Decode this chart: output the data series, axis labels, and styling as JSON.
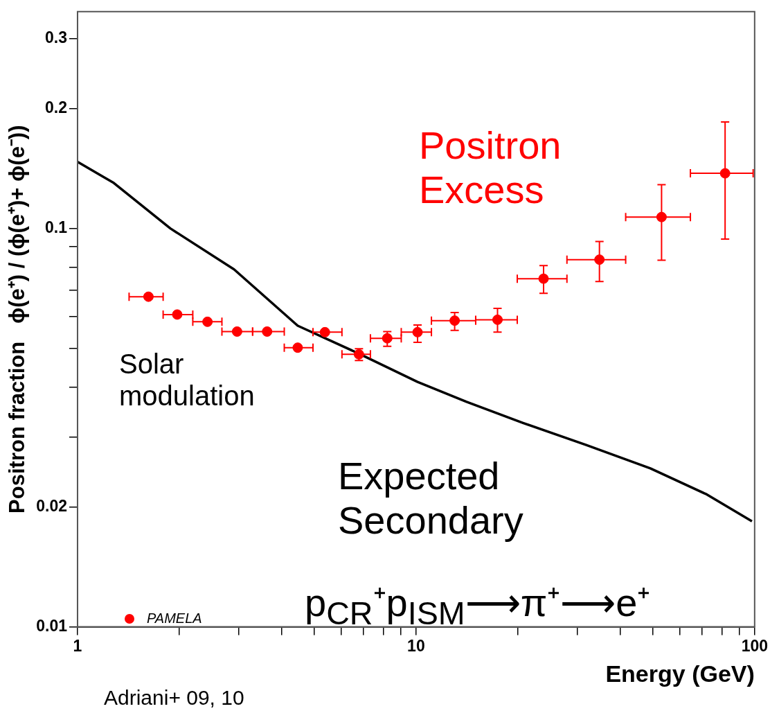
{
  "chart_data": {
    "type": "scatter",
    "xlabel": "Energy (GeV)",
    "ylabel": "Positron fraction   ϕ(e⁺) / (ϕ(e⁺)+ ϕ(e⁻))",
    "log": "xy",
    "xlim": [
      1,
      100
    ],
    "ylim": [
      0.01,
      0.35
    ],
    "xticks": [
      1,
      {
        "value": 2,
        "label": null
      },
      {
        "value": 3,
        "label": null
      },
      {
        "value": 4,
        "label": null
      },
      {
        "value": 5,
        "label": null
      },
      {
        "value": 6,
        "label": null
      },
      {
        "value": 7,
        "label": null
      },
      {
        "value": 8,
        "label": null
      },
      {
        "value": 9,
        "label": null
      },
      10,
      {
        "value": 20,
        "label": null
      },
      {
        "value": 30,
        "label": null
      },
      {
        "value": 40,
        "label": null
      },
      {
        "value": 50,
        "label": null
      },
      {
        "value": 60,
        "label": null
      },
      {
        "value": 70,
        "label": null
      },
      {
        "value": 80,
        "label": null
      },
      {
        "value": 90,
        "label": null
      },
      100
    ],
    "yticks": [
      0.01,
      0.02,
      {
        "value": 0.03,
        "label": null
      },
      {
        "value": 0.04,
        "label": null
      },
      {
        "value": 0.05,
        "label": null
      },
      {
        "value": 0.06,
        "label": null
      },
      {
        "value": 0.07,
        "label": null
      },
      {
        "value": 0.08,
        "label": null
      },
      {
        "value": 0.09,
        "label": null
      },
      0.1,
      0.2,
      0.3
    ],
    "grid": false,
    "legend": "bottom left",
    "series": [
      {
        "name": "PAMELA",
        "marker": "circle",
        "color": "#ff0000",
        "x": [
          1.62,
          1.97,
          2.42,
          2.96,
          3.63,
          4.47,
          5.38,
          6.78,
          8.22,
          10.1,
          13.0,
          17.4,
          23.8,
          34.8,
          53.1,
          81.8
        ],
        "values": [
          0.0674,
          0.0608,
          0.0583,
          0.0551,
          0.0551,
          0.0502,
          0.0549,
          0.0483,
          0.053,
          0.0549,
          0.0587,
          0.059,
          0.0748,
          0.0835,
          0.1068,
          0.1375
        ],
        "errors": [
          null,
          null,
          null,
          null,
          null,
          null,
          null,
          [
            0.0466,
            0.0499
          ],
          [
            0.0506,
            0.0551
          ],
          [
            0.0518,
            0.0572
          ],
          [
            0.0555,
            0.0615
          ],
          [
            0.0549,
            0.063
          ],
          [
            0.0687,
            0.0807
          ],
          [
            0.0736,
            0.0927
          ],
          [
            0.0832,
            0.1288
          ],
          [
            0.094,
            0.185
          ]
        ],
        "xerrors": [
          [
            1.42,
            1.79
          ],
          [
            1.79,
            2.19
          ],
          [
            2.19,
            2.67
          ],
          [
            2.67,
            3.29
          ],
          [
            3.29,
            4.08
          ],
          [
            4.08,
            4.96
          ],
          [
            4.96,
            6.04
          ],
          [
            6.04,
            7.33
          ],
          [
            7.33,
            9.04
          ],
          [
            9.04,
            11.1
          ],
          [
            11.1,
            15.0
          ],
          [
            15.0,
            19.9
          ],
          [
            19.9,
            27.9
          ],
          [
            27.9,
            41.6
          ],
          [
            41.6,
            64.6
          ],
          [
            64.6,
            99
          ]
        ]
      },
      {
        "type": "line",
        "color": "#000000",
        "line_style": "solid",
        "x": [
          1,
          1.28,
          1.88,
          2.9,
          4.47,
          6.78,
          10.1,
          14.1,
          20.7,
          31.8,
          49.2,
          72.2,
          98.2
        ],
        "values": [
          0.147,
          0.13,
          0.1,
          0.0789,
          0.057,
          0.0485,
          0.0412,
          0.0367,
          0.0325,
          0.0286,
          0.025,
          0.0215,
          0.0184
        ]
      }
    ],
    "annotations": [
      "Positron Excess",
      "Solar modulation",
      "Expected Secondary",
      "p$_{CR}$⁺p$_{ISM}$⟶π⁺⟶e⁺",
      "Adriani+ 09, 10"
    ]
  }
}
